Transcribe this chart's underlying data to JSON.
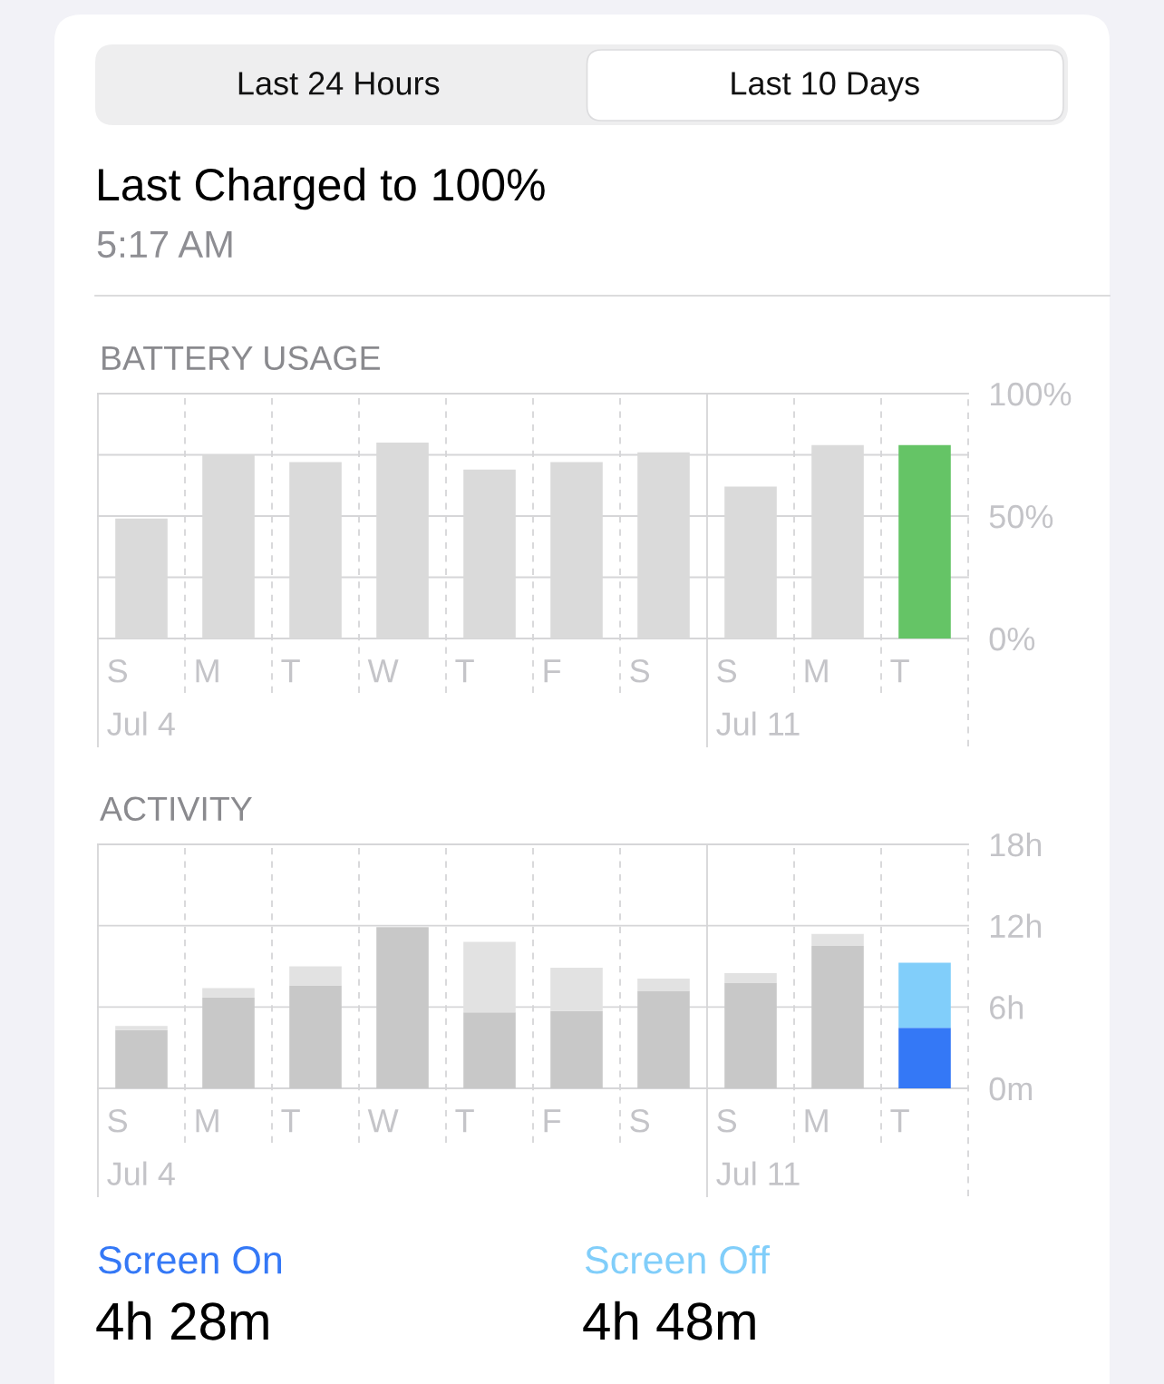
{
  "chart_data": [
    {
      "type": "other",
      "title": "Last Charged to 100%",
      "subtitle": "5:17 AM",
      "annotations": [
        "Last 24 Hours",
        "Last 10 Days"
      ]
    },
    {
      "type": "bar",
      "title": "BATTERY USAGE",
      "categories": [
        "S\nJul 4",
        "M",
        "T",
        "W",
        "T",
        "F",
        "S",
        "S\nJul 11",
        "M",
        "T"
      ],
      "values": [
        49,
        75,
        72,
        80,
        69,
        72,
        76,
        62,
        79,
        79
      ],
      "colors": [
        "#dadada",
        "#dadada",
        "#dadada",
        "#dadada",
        "#dadada",
        "#dadada",
        "#dadada",
        "#dadada",
        "#dadada",
        "#65c466"
      ],
      "ylim": [
        0,
        100
      ],
      "yticks": [
        {
          "value": 0,
          "label": "0%"
        },
        {
          "value": 25,
          "label": null
        },
        {
          "value": 50,
          "label": "50%"
        },
        {
          "value": 75,
          "label": null
        },
        {
          "value": 100,
          "label": "100%"
        }
      ],
      "grid": true
    },
    {
      "type": "bar",
      "title": "ACTIVITY",
      "categories": [
        "S\nJul 4",
        "M",
        "T",
        "W",
        "T",
        "F",
        "S",
        "S\nJul 11",
        "M",
        "T"
      ],
      "stacked": true,
      "series": [
        {
          "name": "Screen On",
          "color": "#3478f6",
          "colors": [
            "#c8c8c8",
            "#c8c8c8",
            "#c8c8c8",
            "#c8c8c8",
            "#c8c8c8",
            "#c8c8c8",
            "#c8c8c8",
            "#c8c8c8",
            "#c8c8c8",
            "#3478f6"
          ],
          "values": [
            4.3,
            6.7,
            7.6,
            11.9,
            5.6,
            5.7,
            7.2,
            7.8,
            10.5,
            4.47
          ]
        },
        {
          "name": "Screen Off",
          "color": "#81cefa",
          "colors": [
            "#e2e2e2",
            "#e2e2e2",
            "#e2e2e2",
            "#e2e2e2",
            "#e2e2e2",
            "#e2e2e2",
            "#e2e2e2",
            "#e2e2e2",
            "#e2e2e2",
            "#81cefa"
          ],
          "values": [
            0.3,
            0.7,
            1.4,
            0,
            5.2,
            3.2,
            0.9,
            0.7,
            0.9,
            4.8
          ]
        }
      ],
      "ylim": [
        0,
        18
      ],
      "yticks": [
        {
          "value": 0,
          "label": "0m"
        },
        {
          "value": 6,
          "label": "6h"
        },
        {
          "value": 12,
          "label": "12h"
        },
        {
          "value": 18,
          "label": "18h"
        }
      ],
      "grid": true,
      "legend": "bottom",
      "annotations": [
        "4h 28m",
        "4h 48m"
      ]
    }
  ]
}
